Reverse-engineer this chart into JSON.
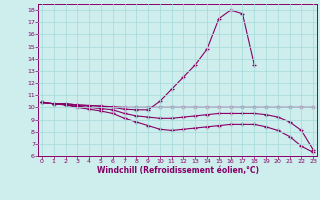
{
  "xlabel": "Windchill (Refroidissement éolien,°C)",
  "bg_color": "#cdeeed",
  "line_color": "#880066",
  "grid_color": "#aadddd",
  "line1_x": [
    0,
    1,
    2,
    3,
    4,
    5,
    6,
    7,
    8,
    9,
    10,
    11,
    12,
    13,
    14,
    15,
    16,
    17,
    18
  ],
  "line1_y": [
    10.4,
    10.3,
    10.3,
    10.2,
    10.15,
    10.1,
    10.0,
    9.85,
    9.8,
    9.8,
    10.5,
    11.5,
    12.5,
    13.5,
    14.8,
    17.3,
    18.0,
    17.7,
    13.5
  ],
  "line2_x": [
    0,
    1,
    2,
    3,
    4,
    5,
    6,
    7,
    8,
    9,
    10,
    11,
    12,
    13,
    14,
    15,
    16,
    17,
    18,
    19,
    20,
    21,
    22,
    23
  ],
  "line2_y": [
    10.4,
    10.3,
    10.3,
    10.2,
    10.15,
    10.1,
    10.05,
    10.0,
    10.0,
    10.0,
    10.0,
    10.0,
    10.0,
    10.0,
    10.0,
    10.0,
    10.0,
    10.0,
    10.0,
    10.0,
    10.0,
    10.0,
    10.0,
    10.0
  ],
  "line3_x": [
    0,
    1,
    2,
    3,
    4,
    5,
    6,
    7,
    8,
    9,
    10,
    11,
    12,
    13,
    14,
    15,
    16,
    17,
    18,
    19,
    20,
    21,
    22,
    23
  ],
  "line3_y": [
    10.4,
    10.3,
    10.2,
    10.1,
    10.0,
    9.9,
    9.8,
    9.5,
    9.3,
    9.2,
    9.1,
    9.1,
    9.2,
    9.3,
    9.4,
    9.5,
    9.5,
    9.5,
    9.5,
    9.4,
    9.2,
    8.8,
    8.1,
    6.5
  ],
  "line4_x": [
    0,
    1,
    2,
    3,
    4,
    5,
    6,
    7,
    8,
    9,
    10,
    11,
    12,
    13,
    14,
    15,
    16,
    17,
    18,
    19,
    20,
    21,
    22,
    23
  ],
  "line4_y": [
    10.4,
    10.3,
    10.2,
    10.0,
    9.85,
    9.7,
    9.5,
    9.1,
    8.8,
    8.5,
    8.2,
    8.1,
    8.2,
    8.3,
    8.4,
    8.5,
    8.6,
    8.6,
    8.6,
    8.4,
    8.1,
    7.6,
    6.8,
    6.3
  ],
  "ylim": [
    6,
    18.5
  ],
  "xlim": [
    -0.3,
    23.3
  ],
  "yticks": [
    6,
    7,
    8,
    9,
    10,
    11,
    12,
    13,
    14,
    15,
    16,
    17,
    18
  ],
  "xticks": [
    0,
    1,
    2,
    3,
    4,
    5,
    6,
    7,
    8,
    9,
    10,
    11,
    12,
    13,
    14,
    15,
    16,
    17,
    18,
    19,
    20,
    21,
    22,
    23
  ]
}
